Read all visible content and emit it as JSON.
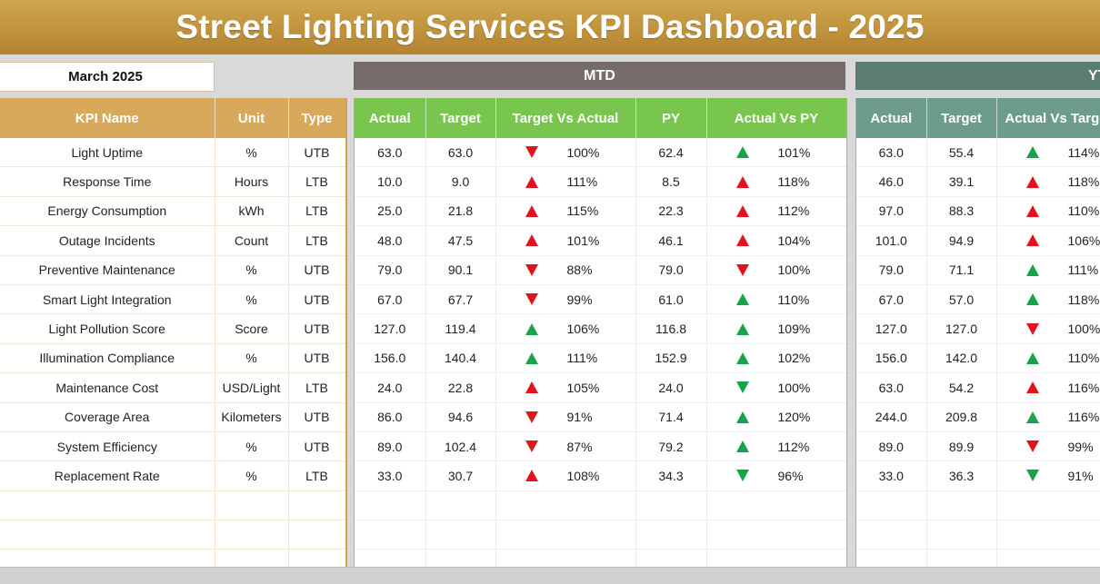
{
  "title": "Street Lighting Services KPI Dashboard - 2025",
  "month": "March 2025",
  "sections": {
    "mtd": "MTD",
    "ytd": "YTD"
  },
  "colors": {
    "banner": "#c3963f",
    "kpi_header": "#d8a95b",
    "mtd_header": "#78c64e",
    "ytd_header": "#6e9c8b",
    "mtd_bar": "#766c69",
    "ytd_bar": "#5a7d6f",
    "arrow_red": "#e0141e",
    "arrow_green": "#16a34a"
  },
  "kpi_headers": [
    "KPI Name",
    "Unit",
    "Type"
  ],
  "mtd_headers": [
    "Actual",
    "Target",
    "Target Vs Actual",
    "PY",
    "Actual Vs PY"
  ],
  "ytd_headers": [
    "Actual",
    "Target",
    "Actual Vs Target"
  ],
  "rows": [
    {
      "name": "Light Uptime",
      "unit": "%",
      "type": "UTB",
      "mtd": {
        "actual": "63.0",
        "target": "63.0",
        "tva_icon": "down-red",
        "tva": "100%",
        "py": "62.4",
        "avp_icon": "up-green",
        "avp": "101%"
      },
      "ytd": {
        "actual": "63.0",
        "target": "55.4",
        "avt_icon": "up-green",
        "avt": "114%"
      }
    },
    {
      "name": "Response Time",
      "unit": "Hours",
      "type": "LTB",
      "mtd": {
        "actual": "10.0",
        "target": "9.0",
        "tva_icon": "up-red",
        "tva": "111%",
        "py": "8.5",
        "avp_icon": "up-red",
        "avp": "118%"
      },
      "ytd": {
        "actual": "46.0",
        "target": "39.1",
        "avt_icon": "up-red",
        "avt": "118%"
      }
    },
    {
      "name": "Energy Consumption",
      "unit": "kWh",
      "type": "LTB",
      "mtd": {
        "actual": "25.0",
        "target": "21.8",
        "tva_icon": "up-red",
        "tva": "115%",
        "py": "22.3",
        "avp_icon": "up-red",
        "avp": "112%"
      },
      "ytd": {
        "actual": "97.0",
        "target": "88.3",
        "avt_icon": "up-red",
        "avt": "110%"
      }
    },
    {
      "name": "Outage Incidents",
      "unit": "Count",
      "type": "LTB",
      "mtd": {
        "actual": "48.0",
        "target": "47.5",
        "tva_icon": "up-red",
        "tva": "101%",
        "py": "46.1",
        "avp_icon": "up-red",
        "avp": "104%"
      },
      "ytd": {
        "actual": "101.0",
        "target": "94.9",
        "avt_icon": "up-red",
        "avt": "106%"
      }
    },
    {
      "name": "Preventive Maintenance",
      "unit": "%",
      "type": "UTB",
      "mtd": {
        "actual": "79.0",
        "target": "90.1",
        "tva_icon": "down-red",
        "tva": "88%",
        "py": "79.0",
        "avp_icon": "down-red",
        "avp": "100%"
      },
      "ytd": {
        "actual": "79.0",
        "target": "71.1",
        "avt_icon": "up-green",
        "avt": "111%"
      }
    },
    {
      "name": "Smart Light Integration",
      "unit": "%",
      "type": "UTB",
      "mtd": {
        "actual": "67.0",
        "target": "67.7",
        "tva_icon": "down-red",
        "tva": "99%",
        "py": "61.0",
        "avp_icon": "up-green",
        "avp": "110%"
      },
      "ytd": {
        "actual": "67.0",
        "target": "57.0",
        "avt_icon": "up-green",
        "avt": "118%"
      }
    },
    {
      "name": "Light Pollution Score",
      "unit": "Score",
      "type": "UTB",
      "mtd": {
        "actual": "127.0",
        "target": "119.4",
        "tva_icon": "up-green",
        "tva": "106%",
        "py": "116.8",
        "avp_icon": "up-green",
        "avp": "109%"
      },
      "ytd": {
        "actual": "127.0",
        "target": "127.0",
        "avt_icon": "down-red",
        "avt": "100%"
      }
    },
    {
      "name": "Illumination Compliance",
      "unit": "%",
      "type": "UTB",
      "mtd": {
        "actual": "156.0",
        "target": "140.4",
        "tva_icon": "up-green",
        "tva": "111%",
        "py": "152.9",
        "avp_icon": "up-green",
        "avp": "102%"
      },
      "ytd": {
        "actual": "156.0",
        "target": "142.0",
        "avt_icon": "up-green",
        "avt": "110%"
      }
    },
    {
      "name": "Maintenance Cost",
      "unit": "USD/Light",
      "type": "LTB",
      "mtd": {
        "actual": "24.0",
        "target": "22.8",
        "tva_icon": "up-red",
        "tva": "105%",
        "py": "24.0",
        "avp_icon": "down-green",
        "avp": "100%"
      },
      "ytd": {
        "actual": "63.0",
        "target": "54.2",
        "avt_icon": "up-red",
        "avt": "116%"
      }
    },
    {
      "name": "Coverage Area",
      "unit": "Kilometers",
      "type": "UTB",
      "mtd": {
        "actual": "86.0",
        "target": "94.6",
        "tva_icon": "down-red",
        "tva": "91%",
        "py": "71.4",
        "avp_icon": "up-green",
        "avp": "120%"
      },
      "ytd": {
        "actual": "244.0",
        "target": "209.8",
        "avt_icon": "up-green",
        "avt": "116%"
      }
    },
    {
      "name": "System Efficiency",
      "unit": "%",
      "type": "UTB",
      "mtd": {
        "actual": "89.0",
        "target": "102.4",
        "tva_icon": "down-red",
        "tva": "87%",
        "py": "79.2",
        "avp_icon": "up-green",
        "avp": "112%"
      },
      "ytd": {
        "actual": "89.0",
        "target": "89.9",
        "avt_icon": "down-red",
        "avt": "99%"
      }
    },
    {
      "name": "Replacement Rate",
      "unit": "%",
      "type": "LTB",
      "mtd": {
        "actual": "33.0",
        "target": "30.7",
        "tva_icon": "up-red",
        "tva": "108%",
        "py": "34.3",
        "avp_icon": "down-green",
        "avp": "96%"
      },
      "ytd": {
        "actual": "33.0",
        "target": "36.3",
        "avt_icon": "down-green",
        "avt": "91%"
      }
    }
  ]
}
